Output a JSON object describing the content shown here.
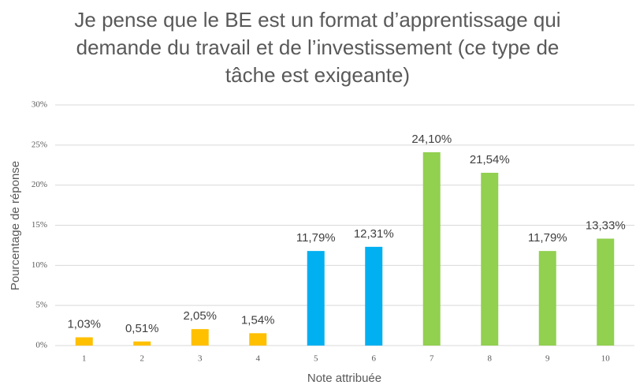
{
  "chart_data": {
    "type": "bar",
    "title": "Je pense que le BE est un format d’apprentissage qui demande du travail et de l’investissement (ce type de tâche est exigeante)",
    "x_label": "Note attribuée",
    "y_label": "Pourcentage de réponse",
    "categories": [
      "1",
      "2",
      "3",
      "4",
      "5",
      "6",
      "7",
      "8",
      "9",
      "10"
    ],
    "values": [
      1.03,
      0.51,
      2.05,
      1.54,
      11.79,
      12.31,
      24.1,
      21.54,
      11.79,
      13.33
    ],
    "value_labels": [
      "1,03%",
      "0,51%",
      "2,05%",
      "1,54%",
      "11,79%",
      "12,31%",
      "24,10%",
      "21,54%",
      "11,79%",
      "13,33%"
    ],
    "colors": [
      "#FFC000",
      "#FFC000",
      "#FFC000",
      "#FFC000",
      "#00B0F0",
      "#00B0F0",
      "#92D050",
      "#92D050",
      "#92D050",
      "#92D050"
    ],
    "ylim": [
      0,
      30
    ],
    "yticks": [
      {
        "value": 0,
        "label": "0%"
      },
      {
        "value": 5,
        "label": "5%"
      },
      {
        "value": 10,
        "label": "10%"
      },
      {
        "value": 15,
        "label": "15%"
      },
      {
        "value": 20,
        "label": "20%"
      },
      {
        "value": 25,
        "label": "25%"
      },
      {
        "value": 30,
        "label": "30%"
      }
    ],
    "grid": true
  }
}
